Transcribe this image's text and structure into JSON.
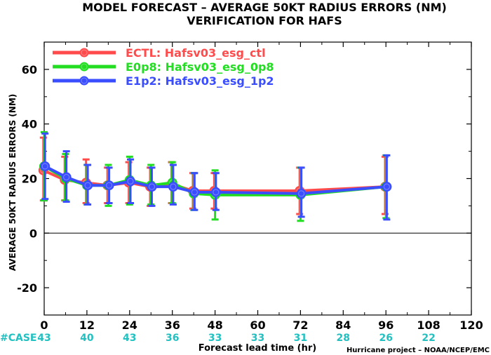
{
  "chart_data": {
    "type": "line",
    "title_lines": [
      "MODEL FORECAST – AVERAGE 50KT RADIUS ERRORS (NM)",
      "VERIFICATION FOR HAFS"
    ],
    "xlabel": "Forecast lead time (hr)",
    "ylabel": "AVERAGE 50KT RADIUS ERRORS (NM)",
    "xlim": [
      0,
      120
    ],
    "ylim": [
      -30,
      70
    ],
    "xticks": [
      0,
      12,
      24,
      36,
      48,
      60,
      72,
      84,
      96,
      108,
      120
    ],
    "yticks": [
      -20,
      0,
      20,
      40,
      60
    ],
    "zero_line": true,
    "legend_position": "top-left",
    "series": [
      {
        "name": "ECTL: Hafsv03_esg_ctl",
        "color": "#ff4b4b",
        "x": [
          0,
          6,
          12,
          18,
          24,
          30,
          36,
          42,
          48,
          72,
          96
        ],
        "y": [
          23,
          19.5,
          18.5,
          17.5,
          18.5,
          17,
          18,
          15.5,
          15.5,
          15.5,
          17
        ],
        "low": [
          12,
          12,
          11,
          11,
          11,
          10,
          11,
          9,
          9,
          7,
          7
        ],
        "high": [
          35,
          28,
          27,
          24,
          26,
          24,
          26,
          22,
          22,
          24,
          28
        ]
      },
      {
        "name": "E0p8: Hafsv03_esg_0p8",
        "color": "#22dd22",
        "x": [
          0,
          6,
          12,
          18,
          24,
          30,
          36,
          42,
          48,
          72,
          96
        ],
        "y": [
          24.5,
          20,
          17.5,
          17.5,
          19.5,
          17.5,
          18.5,
          14.5,
          14,
          14,
          17
        ],
        "low": [
          12,
          12,
          10.5,
          10,
          10.5,
          10.5,
          11,
          8.5,
          5,
          4.5,
          5.5
        ],
        "high": [
          37,
          29,
          25,
          25,
          28,
          25,
          26,
          22,
          23,
          24,
          28.5
        ]
      },
      {
        "name": "E1p2: Hafsv03_esg_1p2",
        "color": "#3a4dff",
        "x": [
          0,
          6,
          12,
          18,
          24,
          30,
          36,
          42,
          48,
          72,
          96
        ],
        "y": [
          24.5,
          20.5,
          17.5,
          17.5,
          19,
          17,
          17,
          15,
          15,
          14.5,
          17
        ],
        "low": [
          12.5,
          11.5,
          10.5,
          11,
          11,
          10,
          10.5,
          8.5,
          8.5,
          6,
          5
        ],
        "high": [
          36.5,
          30,
          25,
          24,
          27,
          24,
          25,
          22,
          22,
          24,
          28.5
        ]
      }
    ],
    "case_label": "#CASE",
    "case_counts": [
      {
        "x": 0,
        "n": "43"
      },
      {
        "x": 12,
        "n": "40"
      },
      {
        "x": 24,
        "n": "43"
      },
      {
        "x": 36,
        "n": "36"
      },
      {
        "x": 48,
        "n": "33"
      },
      {
        "x": 60,
        "n": "33"
      },
      {
        "x": 72,
        "n": "31"
      },
      {
        "x": 84,
        "n": "28"
      },
      {
        "x": 96,
        "n": "26"
      },
      {
        "x": 108,
        "n": "22"
      }
    ],
    "credit": "Hurricane project – NOAA/NCEP/EMC"
  }
}
